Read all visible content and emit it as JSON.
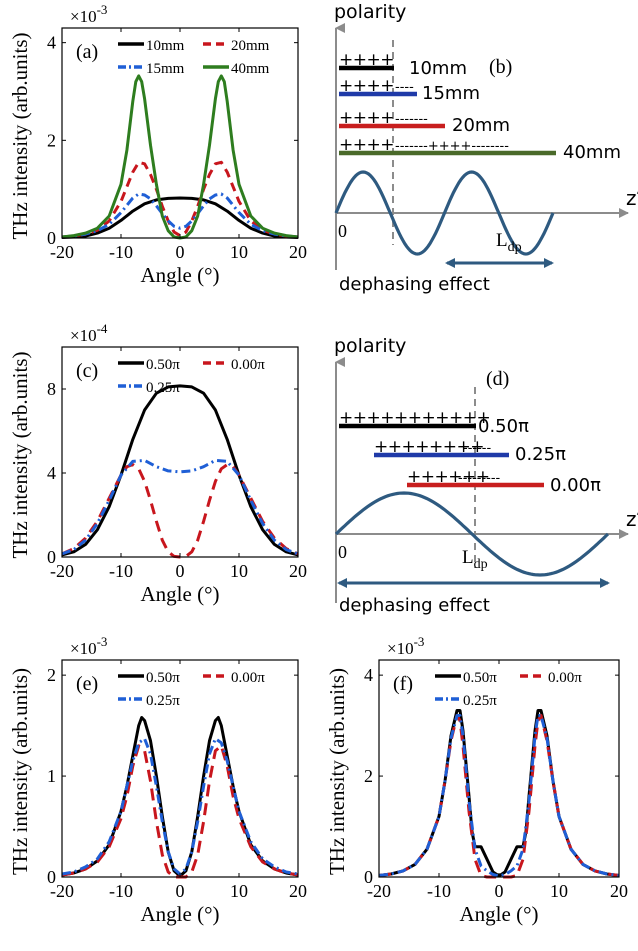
{
  "colors": {
    "black": "#000000",
    "red": "#c8161d",
    "blue": "#1f5fd6",
    "green": "#2e7d1f",
    "navy": "#2e5a80",
    "axis": "#8c8c8c",
    "dash": "#8c8c8c",
    "bar_blue": "#1f3aa8",
    "bar_red": "#c81e1e",
    "bar_green": "#4a6a2a"
  },
  "chart_data": [
    {
      "panel": "(a)",
      "type": "line",
      "ylabel": "THz intensity (arb.units)",
      "xlabel": "Angle (°)",
      "exponent": "×10",
      "exponent_power": "-3",
      "xlim": [
        -20,
        20
      ],
      "ylim": [
        0,
        4.3
      ],
      "xticks": [
        "-20",
        "-10",
        "0",
        "10",
        "20"
      ],
      "yticks": [
        "0",
        "2",
        "4"
      ],
      "legend": [
        "10mm",
        "20mm",
        "15mm",
        "40mm"
      ],
      "series": [
        {
          "name": "10mm",
          "color": "black",
          "dash": "",
          "x": [
            -20,
            -18,
            -16,
            -14,
            -12,
            -10,
            -8,
            -6,
            -4,
            -2,
            0,
            2,
            4,
            6,
            8,
            10,
            12,
            14,
            16,
            18,
            20
          ],
          "y": [
            0.01,
            0.02,
            0.04,
            0.1,
            0.2,
            0.36,
            0.55,
            0.7,
            0.78,
            0.81,
            0.82,
            0.81,
            0.78,
            0.7,
            0.55,
            0.36,
            0.2,
            0.1,
            0.04,
            0.02,
            0.01
          ]
        },
        {
          "name": "20mm",
          "color": "red",
          "dash": "9,6",
          "x": [
            -20,
            -18,
            -16,
            -14,
            -12,
            -10,
            -8,
            -7,
            -6,
            -5,
            -4,
            -3,
            -2,
            -1,
            0,
            1,
            2,
            3,
            4,
            5,
            6,
            7,
            8,
            10,
            12,
            14,
            16,
            18,
            20
          ],
          "y": [
            0.02,
            0.04,
            0.08,
            0.16,
            0.35,
            0.75,
            1.35,
            1.55,
            1.52,
            1.3,
            1.0,
            0.65,
            0.35,
            0.12,
            0.05,
            0.12,
            0.35,
            0.65,
            1.0,
            1.3,
            1.52,
            1.55,
            1.35,
            0.75,
            0.35,
            0.16,
            0.08,
            0.04,
            0.02
          ]
        },
        {
          "name": "15mm",
          "color": "blue",
          "dash": "9,4,2,4",
          "x": [
            -20,
            -18,
            -16,
            -14,
            -12,
            -10,
            -8,
            -7,
            -6,
            -5,
            -4,
            -3,
            -2,
            -1,
            0,
            1,
            2,
            3,
            4,
            5,
            6,
            7,
            8,
            10,
            12,
            14,
            16,
            18,
            20
          ],
          "y": [
            0.02,
            0.04,
            0.08,
            0.15,
            0.28,
            0.52,
            0.82,
            0.9,
            0.88,
            0.8,
            0.66,
            0.5,
            0.35,
            0.24,
            0.2,
            0.24,
            0.35,
            0.5,
            0.66,
            0.8,
            0.88,
            0.9,
            0.82,
            0.52,
            0.28,
            0.15,
            0.08,
            0.04,
            0.02
          ]
        },
        {
          "name": "40mm",
          "color": "green",
          "dash": "",
          "x": [
            -20,
            -18,
            -16,
            -14,
            -12,
            -10,
            -9,
            -8,
            -7.5,
            -7,
            -6.5,
            -6,
            -5,
            -4,
            -3,
            -2,
            -1,
            0,
            1,
            2,
            3,
            4,
            5,
            6,
            6.5,
            7,
            7.5,
            8,
            9,
            10,
            12,
            14,
            16,
            18,
            20
          ],
          "y": [
            0.02,
            0.05,
            0.1,
            0.2,
            0.45,
            1.1,
            1.8,
            2.8,
            3.2,
            3.32,
            3.2,
            2.85,
            1.9,
            1.1,
            0.45,
            0.15,
            0.02,
            0,
            0.02,
            0.15,
            0.45,
            1.1,
            1.9,
            2.85,
            3.2,
            3.32,
            3.2,
            2.8,
            1.8,
            1.1,
            0.45,
            0.2,
            0.1,
            0.05,
            0.02
          ]
        }
      ]
    },
    {
      "panel": "(c)",
      "type": "line",
      "ylabel": "THz intensity (arb.units)",
      "xlabel": "Angle (°)",
      "exponent": "×10",
      "exponent_power": "-4",
      "xlim": [
        -20,
        20
      ],
      "ylim": [
        0,
        10
      ],
      "xticks": [
        "-20",
        "-10",
        "0",
        "10",
        "20"
      ],
      "yticks": [
        "0",
        "4",
        "8"
      ],
      "legend": [
        "0.50π",
        "0.00π",
        "0.25π"
      ],
      "series": [
        {
          "name": "0.50π",
          "color": "black",
          "dash": "",
          "x": [
            -20,
            -18,
            -16,
            -14,
            -12,
            -10,
            -8,
            -6,
            -4,
            -2,
            0,
            2,
            4,
            6,
            8,
            10,
            12,
            14,
            16,
            18,
            20
          ],
          "y": [
            0.1,
            0.25,
            0.6,
            1.3,
            2.4,
            3.9,
            5.6,
            7.0,
            7.8,
            8.1,
            8.15,
            8.1,
            7.8,
            7.0,
            5.6,
            3.9,
            2.4,
            1.3,
            0.6,
            0.25,
            0.1
          ]
        },
        {
          "name": "0.00π",
          "color": "red",
          "dash": "11,7",
          "x": [
            -20,
            -18,
            -16,
            -14,
            -12,
            -10,
            -9,
            -8,
            -7,
            -6,
            -5,
            -4,
            -3,
            -2,
            -1,
            0,
            1,
            2,
            3,
            4,
            5,
            6,
            7,
            8,
            9,
            10,
            12,
            14,
            16,
            18,
            20
          ],
          "y": [
            0.15,
            0.4,
            0.9,
            1.7,
            2.8,
            3.9,
            4.3,
            4.4,
            4.2,
            3.6,
            2.7,
            1.7,
            0.8,
            0.25,
            0.03,
            0,
            0.03,
            0.25,
            0.8,
            1.7,
            2.7,
            3.6,
            4.2,
            4.4,
            4.3,
            3.9,
            2.8,
            1.7,
            0.9,
            0.4,
            0.15
          ]
        },
        {
          "name": "0.25π",
          "color": "blue",
          "dash": "9,4,2,4",
          "x": [
            -20,
            -18,
            -16,
            -14,
            -12,
            -10,
            -8,
            -6,
            -4,
            -2,
            0,
            2,
            4,
            6,
            8,
            10,
            12,
            14,
            16,
            18,
            20
          ],
          "y": [
            0.15,
            0.35,
            0.8,
            1.6,
            2.7,
            3.9,
            4.55,
            4.6,
            4.3,
            4.1,
            4.05,
            4.1,
            4.3,
            4.6,
            4.55,
            3.9,
            2.7,
            1.6,
            0.8,
            0.35,
            0.15
          ]
        }
      ]
    },
    {
      "panel": "(e)",
      "type": "line",
      "ylabel": "THz intensity (arb.units)",
      "xlabel": "Angle (°)",
      "exponent": "×10",
      "exponent_power": "-3",
      "xlim": [
        -20,
        20
      ],
      "ylim": [
        0,
        2.15
      ],
      "xticks": [
        "-20",
        "-10",
        "0",
        "10",
        "20"
      ],
      "yticks": [
        "0",
        "1",
        "2"
      ],
      "legend": [
        "0.50π",
        "0.00π",
        "0.25π"
      ],
      "series": [
        {
          "name": "0.50π",
          "color": "black",
          "dash": "",
          "x": [
            -20,
            -18,
            -16,
            -14,
            -12,
            -10,
            -9,
            -8,
            -7,
            -6.5,
            -6,
            -5,
            -4,
            -3,
            -2,
            -1,
            0,
            1,
            2,
            3,
            4,
            5,
            6,
            6.5,
            7,
            8,
            9,
            10,
            12,
            14,
            16,
            18,
            20
          ],
          "y": [
            0.02,
            0.04,
            0.08,
            0.16,
            0.32,
            0.65,
            0.9,
            1.2,
            1.5,
            1.58,
            1.55,
            1.35,
            1.0,
            0.6,
            0.25,
            0.06,
            0.01,
            0.06,
            0.25,
            0.6,
            1.0,
            1.35,
            1.55,
            1.58,
            1.5,
            1.2,
            0.9,
            0.65,
            0.32,
            0.16,
            0.08,
            0.04,
            0.02
          ]
        },
        {
          "name": "0.00π",
          "color": "red",
          "dash": "12,7",
          "x": [
            -20,
            -18,
            -16,
            -14,
            -12,
            -10,
            -9,
            -8,
            -7,
            -6,
            -5,
            -4,
            -3,
            -2,
            -1,
            0,
            1,
            2,
            3,
            4,
            5,
            6,
            7,
            8,
            9,
            10,
            12,
            14,
            16,
            18,
            20
          ],
          "y": [
            0.02,
            0.04,
            0.08,
            0.15,
            0.3,
            0.58,
            0.8,
            1.1,
            1.3,
            1.25,
            0.95,
            0.55,
            0.22,
            0.05,
            0,
            0,
            0,
            0.05,
            0.22,
            0.55,
            0.95,
            1.25,
            1.3,
            1.1,
            0.8,
            0.58,
            0.3,
            0.15,
            0.08,
            0.04,
            0.02
          ]
        },
        {
          "name": "0.25π",
          "color": "blue",
          "dash": "9,4,2,4",
          "x": [
            -20,
            -18,
            -16,
            -14,
            -12,
            -10,
            -9,
            -8,
            -7,
            -6,
            -5,
            -4,
            -3,
            -2,
            -1,
            0,
            1,
            2,
            3,
            4,
            5,
            6,
            7,
            8,
            9,
            10,
            12,
            14,
            16,
            18,
            20
          ],
          "y": [
            0.03,
            0.05,
            0.1,
            0.18,
            0.35,
            0.65,
            0.9,
            1.15,
            1.33,
            1.37,
            1.22,
            0.9,
            0.55,
            0.25,
            0.08,
            0.03,
            0.08,
            0.25,
            0.55,
            0.9,
            1.22,
            1.37,
            1.33,
            1.15,
            0.9,
            0.65,
            0.35,
            0.18,
            0.1,
            0.05,
            0.03
          ]
        }
      ]
    },
    {
      "panel": "(f)",
      "type": "line",
      "ylabel": "THz intensity (arb.units)",
      "xlabel": "Angle (°)",
      "exponent": "×10",
      "exponent_power": "-3",
      "xlim": [
        -20,
        20
      ],
      "ylim": [
        0,
        4.3
      ],
      "xticks": [
        "-20",
        "-10",
        "0",
        "10",
        "20"
      ],
      "yticks": [
        "0",
        "2",
        "4"
      ],
      "legend": [
        "0.50π",
        "0.00π",
        "0.25π"
      ],
      "series": [
        {
          "name": "0.50π",
          "color": "black",
          "dash": "",
          "x": [
            -20,
            -18,
            -16,
            -14,
            -12,
            -10,
            -9,
            -8,
            -7,
            -6.5,
            -6,
            -5,
            -4.5,
            -4,
            -3,
            -2,
            -1,
            0,
            1,
            2,
            3,
            4,
            4.5,
            5,
            6,
            6.5,
            7,
            8,
            9,
            10,
            12,
            14,
            16,
            18,
            20
          ],
          "y": [
            0.03,
            0.06,
            0.12,
            0.25,
            0.55,
            1.2,
            1.9,
            2.8,
            3.3,
            3.3,
            2.9,
            1.6,
            0.9,
            0.6,
            0.6,
            0.35,
            0.1,
            0.02,
            0.1,
            0.35,
            0.6,
            0.6,
            0.9,
            1.6,
            2.9,
            3.3,
            3.3,
            2.8,
            1.9,
            1.2,
            0.55,
            0.25,
            0.12,
            0.06,
            0.03
          ]
        },
        {
          "name": "0.00π",
          "color": "red",
          "dash": "12,7",
          "x": [
            -20,
            -18,
            -16,
            -14,
            -12,
            -10,
            -9,
            -8,
            -7,
            -6.5,
            -6,
            -5,
            -4,
            -3,
            -2,
            -1,
            0,
            1,
            2,
            3,
            4,
            5,
            6,
            6.5,
            7,
            8,
            9,
            10,
            12,
            14,
            16,
            18,
            20
          ],
          "y": [
            0.03,
            0.06,
            0.12,
            0.25,
            0.55,
            1.2,
            1.9,
            2.7,
            3.2,
            3.1,
            2.6,
            1.3,
            0.35,
            0.03,
            0,
            0,
            0,
            0,
            0,
            0.03,
            0.35,
            1.3,
            2.6,
            3.1,
            3.2,
            2.7,
            1.9,
            1.2,
            0.55,
            0.25,
            0.12,
            0.06,
            0.03
          ]
        },
        {
          "name": "0.25π",
          "color": "blue",
          "dash": "9,4,2,4",
          "x": [
            -20,
            -18,
            -16,
            -14,
            -12,
            -10,
            -9,
            -8,
            -7,
            -6.5,
            -6,
            -5,
            -4,
            -3,
            -2,
            -1,
            0,
            1,
            2,
            3,
            4,
            5,
            6,
            6.5,
            7,
            8,
            9,
            10,
            12,
            14,
            16,
            18,
            20
          ],
          "y": [
            0.03,
            0.06,
            0.12,
            0.25,
            0.55,
            1.2,
            1.9,
            2.75,
            3.2,
            3.2,
            2.8,
            1.5,
            0.55,
            0.22,
            0.12,
            0.05,
            0.02,
            0.05,
            0.12,
            0.22,
            0.55,
            1.5,
            2.8,
            3.2,
            3.2,
            2.75,
            1.9,
            1.2,
            0.55,
            0.25,
            0.12,
            0.06,
            0.03
          ]
        }
      ]
    }
  ],
  "diagrams": {
    "b": {
      "panel": "(b)",
      "polarity": "polarity",
      "z_label": "z′",
      "origin": "0",
      "ldp": "L",
      "ldp_sub": "dp",
      "dephasing": "dephasing effect",
      "rows": [
        {
          "plus": "++++",
          "minus": "",
          "label": "10mm",
          "color": "black"
        },
        {
          "plus": "++++",
          "minus": "----",
          "label": "15mm",
          "color": "bar_blue"
        },
        {
          "plus": "++++",
          "minus": "-------",
          "label": "20mm",
          "color": "bar_red"
        },
        {
          "plus": "++++",
          "minus": "-------++++--------",
          "label": "40mm",
          "color": "bar_green"
        }
      ]
    },
    "d": {
      "panel": "(d)",
      "polarity": "polarity",
      "z_label": "z′",
      "origin": "0",
      "ldp": "L",
      "ldp_sub": "dp",
      "dephasing": "dephasing effect",
      "rows": [
        {
          "plus": "+++++++++++",
          "minus": "",
          "label": "0.50π",
          "color": "black"
        },
        {
          "plus": "++++++++",
          "minus": "------",
          "label": "0.25π",
          "color": "bar_blue"
        },
        {
          "plus": "++++++",
          "minus": "---------",
          "label": "0.00π",
          "color": "bar_red"
        }
      ]
    }
  }
}
